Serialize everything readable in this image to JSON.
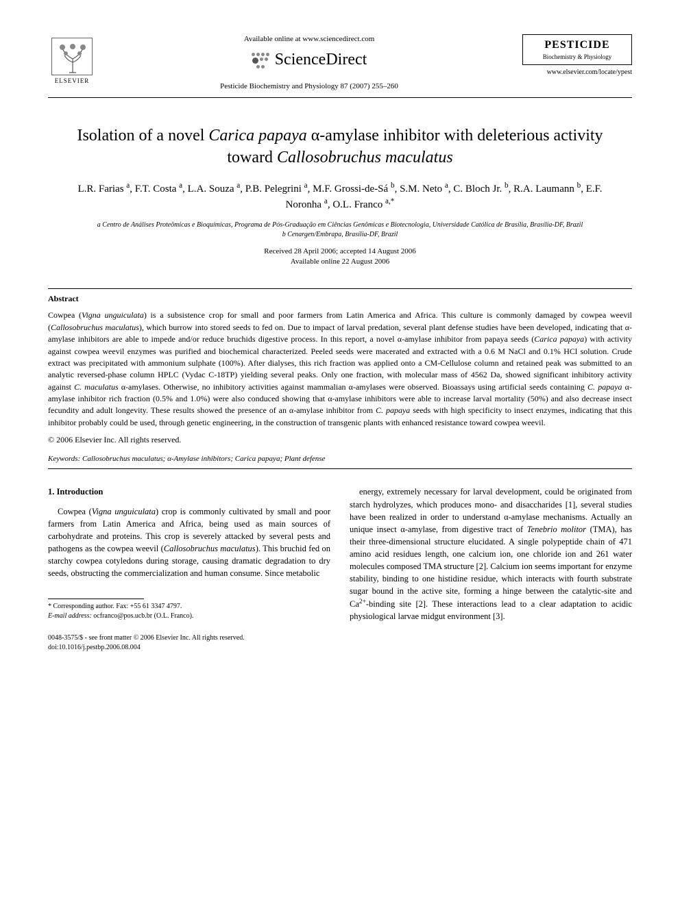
{
  "header": {
    "available_online": "Available online at www.sciencedirect.com",
    "sciencedirect": "ScienceDirect",
    "journal_ref": "Pesticide Biochemistry and Physiology 87 (2007) 255–260",
    "elsevier_label": "ELSEVIER",
    "journal_box_title": "PESTICIDE",
    "journal_box_sub": "Biochemistry & Physiology",
    "locate_url": "www.elsevier.com/locate/ypest"
  },
  "article": {
    "title_html": "Isolation of a novel <em>Carica papaya</em> α-amylase inhibitor with deleterious activity toward <em>Callosobruchus maculatus</em>",
    "authors_html": "L.R. Farias <sup>a</sup>, F.T. Costa <sup>a</sup>, L.A. Souza <sup>a</sup>, P.B. Pelegrini <sup>a</sup>, M.F. Grossi-de-Sá <sup>b</sup>, S.M. Neto <sup>a</sup>, C. Bloch Jr. <sup>b</sup>, R.A. Laumann <sup>b</sup>, E.F. Noronha <sup>a</sup>, O.L. Franco <sup>a,*</sup>",
    "affiliation_a": "a Centro de Análises Proteômicas e Bioquímicas, Programa de Pós-Graduação em Ciências Genômicas e Biotecnologia, Universidade Católica de Brasília, Brasília-DF, Brazil",
    "affiliation_b": "b Cenargen/Embrapa, Brasília-DF, Brazil",
    "received": "Received 28 April 2006; accepted 14 August 2006",
    "available": "Available online 22 August 2006"
  },
  "abstract": {
    "heading": "Abstract",
    "text_html": "Cowpea (<em>Vigna unguiculata</em>) is a subsistence crop for small and poor farmers from Latin America and Africa. This culture is commonly damaged by cowpea weevil (<em>Callosobruchus maculatus</em>), which burrow into stored seeds to fed on. Due to impact of larval predation, several plant defense studies have been developed, indicating that α-amylase inhibitors are able to impede and/or reduce bruchids digestive process. In this report, a novel α-amylase inhibitor from papaya seeds (<em>Carica papaya</em>) with activity against cowpea weevil enzymes was purified and biochemical characterized. Peeled seeds were macerated and extracted with a 0.6 M NaCl and 0.1% HCl solution. Crude extract was precipitated with ammonium sulphate (100%). After dialyses, this rich fraction was applied onto a CM-Cellulose column and retained peak was submitted to an analytic reversed-phase column HPLC (Vydac C-18TP) yielding several peaks. Only one fraction, with molecular mass of 4562 Da, showed significant inhibitory activity against <em>C. maculatus</em> α-amylases. Otherwise, no inhibitory activities against mammalian α-amylases were observed. Bioassays using artificial seeds containing <em>C. papaya</em> α-amylase inhibitor rich fraction (0.5% and 1.0%) were also conduced showing that α-amylase inhibitors were able to increase larval mortality (50%) and also decrease insect fecundity and adult longevity. These results showed the presence of an α-amylase inhibitor from <em>C. papaya</em> seeds with high specificity to insect enzymes, indicating that this inhibitor probably could be used, through genetic engineering, in the construction of transgenic plants with enhanced resistance toward cowpea weevil.",
    "copyright": "© 2006 Elsevier Inc. All rights reserved."
  },
  "keywords": {
    "label": "Keywords:",
    "text_html": "<em>Callosobruchus maculatus</em>; α-Amylase inhibitors; <em>Carica papaya</em>; Plant defense"
  },
  "body": {
    "intro_heading": "1. Introduction",
    "col1_html": "Cowpea (<em>Vigna unguiculata</em>) crop is commonly cultivated by small and poor farmers from Latin America and Africa, being used as main sources of carbohydrate and proteins. This crop is severely attacked by several pests and pathogens as the cowpea weevil (<em>Callosobruchus maculatus</em>). This bruchid fed on starchy cowpea cotyledons during storage, causing dramatic degradation to dry seeds, obstructing the commercialization and human consume. Since metabolic",
    "col2_html": "energy, extremely necessary for larval development, could be originated from starch hydrolyzes, which produces mono- and disaccharides <span class='ref-link'>[1]</span>, several studies have been realized in order to understand α-amylase mechanisms. Actually an unique insect α-amylase, from digestive tract of <em>Tenebrio molitor</em> (TMA), has their three-dimensional structure elucidated. A single polypeptide chain of 471 amino acid residues length, one calcium ion, one chloride ion and 261 water molecules composed TMA structure <span class='ref-link'>[2]</span>. Calcium ion seems important for enzyme stability, binding to one histidine residue, which interacts with fourth substrate sugar bound in the active site, forming a hinge between the catalytic-site and Ca<sup>2+</sup>-binding site <span class='ref-link'>[2]</span>. These interactions lead to a clear adaptation to acidic physiological larvae midgut environment <span class='ref-link'>[3]</span>."
  },
  "footnote": {
    "corresponding": "* Corresponding author. Fax: +55 61 3347 4797.",
    "email_label": "E-mail address:",
    "email": "ocfranco@pos.ucb.br",
    "email_name": "(O.L. Franco)."
  },
  "footer": {
    "line1": "0048-3575/$ - see front matter © 2006 Elsevier Inc. All rights reserved.",
    "line2": "doi:10.1016/j.pestbp.2006.08.004"
  }
}
